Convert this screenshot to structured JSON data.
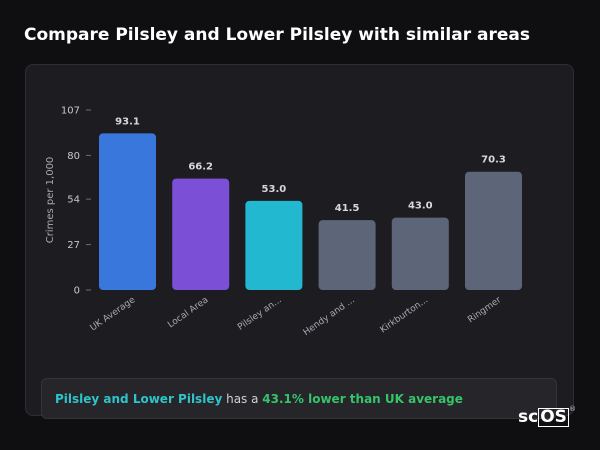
{
  "title": "Compare Pilsley and Lower Pilsley with similar areas",
  "summary": {
    "place": "Pilsley and Lower Pilsley",
    "connector": " has a ",
    "stat": "43.1% lower than UK average"
  },
  "brand": {
    "prefix": "sc",
    "boxed": "OS",
    "mark": "®"
  },
  "chart_data": {
    "type": "bar",
    "ylabel": "Crimes per 1,000",
    "xlabel": "",
    "ylim": [
      0,
      107
    ],
    "yticks": [
      0,
      27,
      54,
      80,
      107
    ],
    "grid": false,
    "categories": [
      "UK Average",
      "Local Area",
      "Pilsley an...",
      "Hendy and ...",
      "Kirkburton...",
      "Ringmer"
    ],
    "values": [
      93.1,
      66.2,
      53.0,
      41.5,
      43.0,
      70.3
    ],
    "value_labels": [
      "93.1",
      "66.2",
      "53.0",
      "41.5",
      "43.0",
      "70.3"
    ],
    "colors": [
      "#3a77dc",
      "#7b4fd6",
      "#22b9d0",
      "#5d6678",
      "#5d6678",
      "#5d6678"
    ]
  }
}
